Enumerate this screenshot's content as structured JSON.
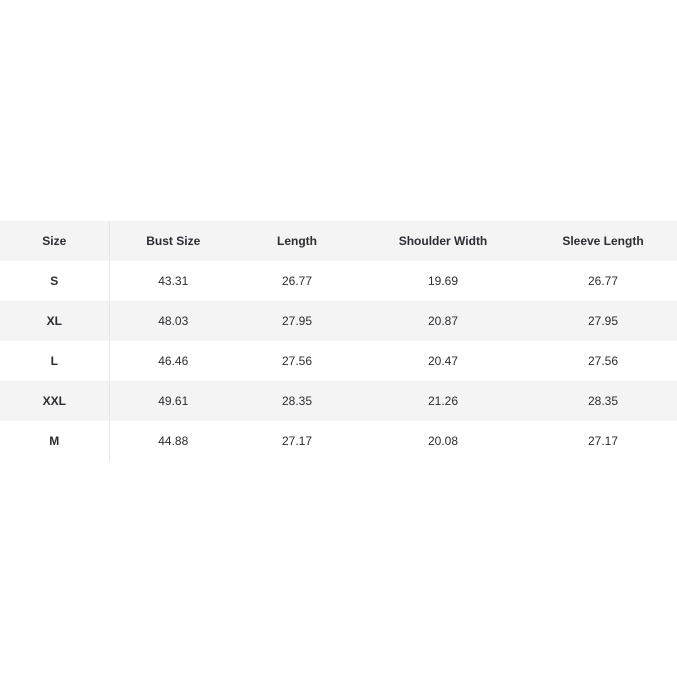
{
  "table": {
    "headers": [
      "Size",
      "Bust Size",
      "Length",
      "Shoulder Width",
      "Sleeve Length"
    ],
    "rows": [
      [
        "S",
        "43.31",
        "26.77",
        "19.69",
        "26.77"
      ],
      [
        "XL",
        "48.03",
        "27.95",
        "20.87",
        "27.95"
      ],
      [
        "L",
        "46.46",
        "27.56",
        "20.47",
        "27.56"
      ],
      [
        "XXL",
        "49.61",
        "28.35",
        "21.26",
        "28.35"
      ],
      [
        "M",
        "44.88",
        "27.17",
        "20.08",
        "27.17"
      ]
    ]
  }
}
